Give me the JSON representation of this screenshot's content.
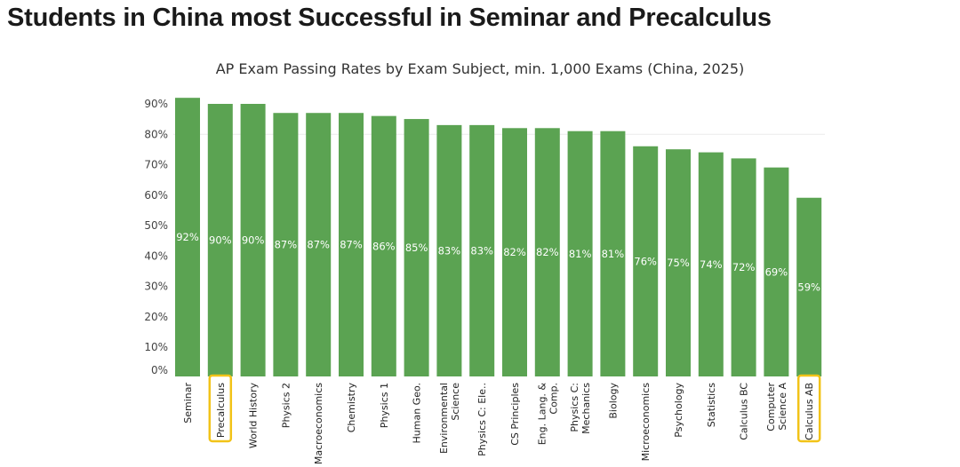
{
  "header": {
    "headline": "Students in China most Successful in Seminar and Precalculus"
  },
  "chart_data": {
    "type": "bar",
    "title": "AP Exam Passing Rates by Exam Subject, min. 1,000 Exams (China, 2025)",
    "xlabel": "",
    "ylabel": "",
    "ylim": [
      0,
      90
    ],
    "yticks": [
      "0%",
      "10%",
      "20%",
      "30%",
      "40%",
      "50%",
      "60%",
      "70%",
      "80%",
      "90%"
    ],
    "categories": [
      [
        "Seminar"
      ],
      [
        "Precalculus"
      ],
      [
        "World History"
      ],
      [
        "Physics 2"
      ],
      [
        "Macroeconomics"
      ],
      [
        "Chemistry"
      ],
      [
        "Physics 1"
      ],
      [
        "Human Geo."
      ],
      [
        "Environmental",
        "Science"
      ],
      [
        "Physics C: Ele.."
      ],
      [
        "CS Principles"
      ],
      [
        "Eng. Lang. &",
        "Comp."
      ],
      [
        "Physics C:",
        "Mechanics"
      ],
      [
        "Biology"
      ],
      [
        "Microeconomics"
      ],
      [
        "Psychology"
      ],
      [
        "Statistics"
      ],
      [
        "Calculus BC"
      ],
      [
        "Computer",
        "Science A"
      ],
      [
        "Calculus AB"
      ]
    ],
    "values": [
      92,
      90,
      90,
      87,
      87,
      87,
      86,
      85,
      83,
      83,
      82,
      82,
      81,
      81,
      76,
      75,
      74,
      72,
      69,
      59
    ],
    "data_labels": [
      "92%",
      "90%",
      "90%",
      "87%",
      "87%",
      "87%",
      "86%",
      "85%",
      "83%",
      "83%",
      "82%",
      "82%",
      "81%",
      "81%",
      "76%",
      "75%",
      "74%",
      "72%",
      "69%",
      "59%"
    ],
    "highlighted": [
      "Precalculus",
      "Calculus AB"
    ],
    "colors": {
      "bar": "#5ba352",
      "highlight": "#f2c318"
    }
  }
}
